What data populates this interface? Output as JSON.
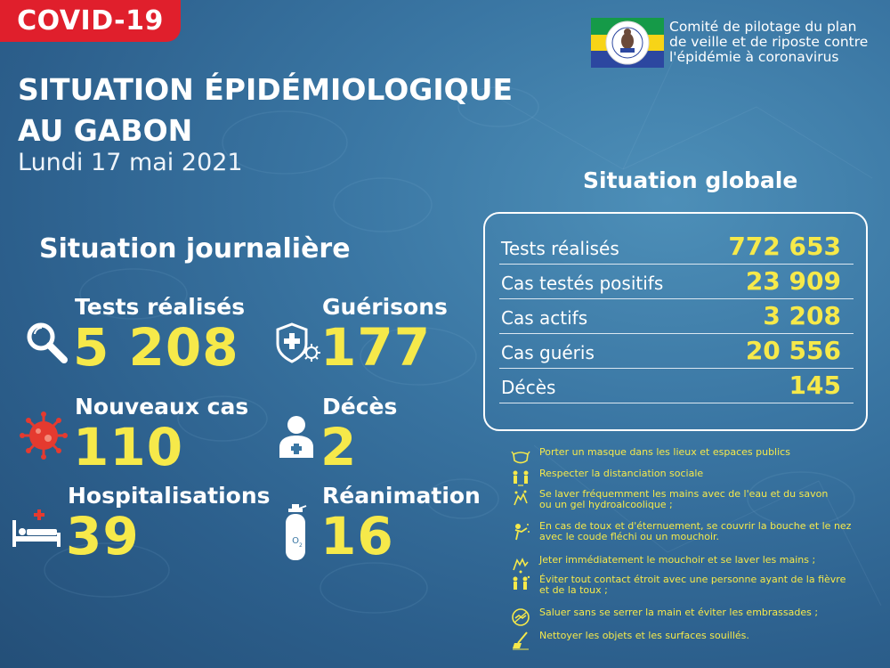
{
  "badge": "COVID-19",
  "title_line1": "SITUATION ÉPIDÉMIOLOGIQUE",
  "title_line2": "AU GABON",
  "date": "Lundi 17 mai 2021",
  "committee": {
    "line1": "Comité de pilotage du plan",
    "line2": "de veille et de riposte contre",
    "line3": "l'épidémie à coronavirus"
  },
  "daily": {
    "title": "Situation journalière",
    "items": [
      {
        "label": "Tests réalisés",
        "value": "5 208",
        "icon": "magnifier-icon"
      },
      {
        "label": "Guérisons",
        "value": "177",
        "icon": "shield-virus-icon"
      },
      {
        "label": "Nouveaux cas",
        "value": "110",
        "icon": "virus-icon"
      },
      {
        "label": "Décès",
        "value": "2",
        "icon": "person-icon"
      },
      {
        "label": "Hospitalisations",
        "value": "39",
        "icon": "hospital-bed-icon"
      },
      {
        "label": "Réanimation",
        "value": "16",
        "icon": "oxygen-tank-icon"
      }
    ]
  },
  "global": {
    "title": "Situation globale",
    "rows": [
      {
        "label": "Tests réalisés",
        "value": "772 653"
      },
      {
        "label": "Cas testés positifs",
        "value": "23 909"
      },
      {
        "label": "Cas actifs",
        "value": "3 208"
      },
      {
        "label": "Cas guéris",
        "value": "20 556"
      },
      {
        "label": "Décès",
        "value": "145"
      }
    ]
  },
  "advice": [
    {
      "text": "Porter un masque dans les lieux et espaces publics",
      "icon": "mask-icon"
    },
    {
      "text": "Respecter la distanciation sociale",
      "icon": "distancing-icon"
    },
    {
      "text": "Se laver fréquemment les mains avec de l'eau et du savon\n ou un gel hydroalcoolique ;",
      "icon": "handwash-icon"
    },
    {
      "text": "En cas de toux et d'éternuement, se couvrir la bouche et le nez\n avec le coude fléchi ou un mouchoir.",
      "icon": "sneeze-icon"
    },
    {
      "text": "Jeter immédiatement le mouchoir et se laver les mains ;",
      "icon": "tissue-icon"
    },
    {
      "text": "Éviter tout contact étroit avec une personne ayant de la fièvre\n et de la toux ;",
      "icon": "avoid-contact-icon"
    },
    {
      "text": "Saluer sans se serrer la main et éviter les embrassades ;",
      "icon": "no-handshake-icon"
    },
    {
      "text": "Nettoyer les objets et les surfaces souillés.",
      "icon": "cleaning-icon"
    }
  ],
  "colors": {
    "accent_yellow": "#f6e94a",
    "badge_red": "#e01f2c",
    "flag_green": "#159a48",
    "flag_yellow": "#f7d417",
    "flag_blue": "#2c47a0"
  }
}
